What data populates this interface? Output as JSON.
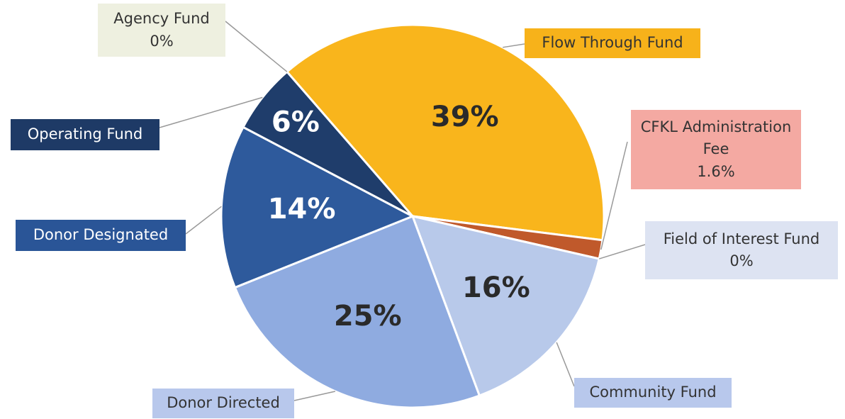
{
  "chart_data": {
    "type": "pie",
    "categories": [
      "Agency Fund",
      "Flow Through Fund",
      "CFKL Administration Fee",
      "Field of Interest Fund",
      "Community Fund",
      "Donor Directed",
      "Donor Designated",
      "Operating Fund"
    ],
    "values": [
      0,
      39,
      1.6,
      0,
      16,
      25,
      14,
      6
    ],
    "value_labels": [
      "0%",
      "39%",
      "1.6%",
      "0%",
      "16%",
      "25%",
      "14%",
      "6%"
    ],
    "colors": [
      "#e9ecd9",
      "#f9b51c",
      "#c0592b",
      "#dde3f2",
      "#b8c9ea",
      "#8fabe0",
      "#2e5a9c",
      "#1f3d6b"
    ]
  }
}
